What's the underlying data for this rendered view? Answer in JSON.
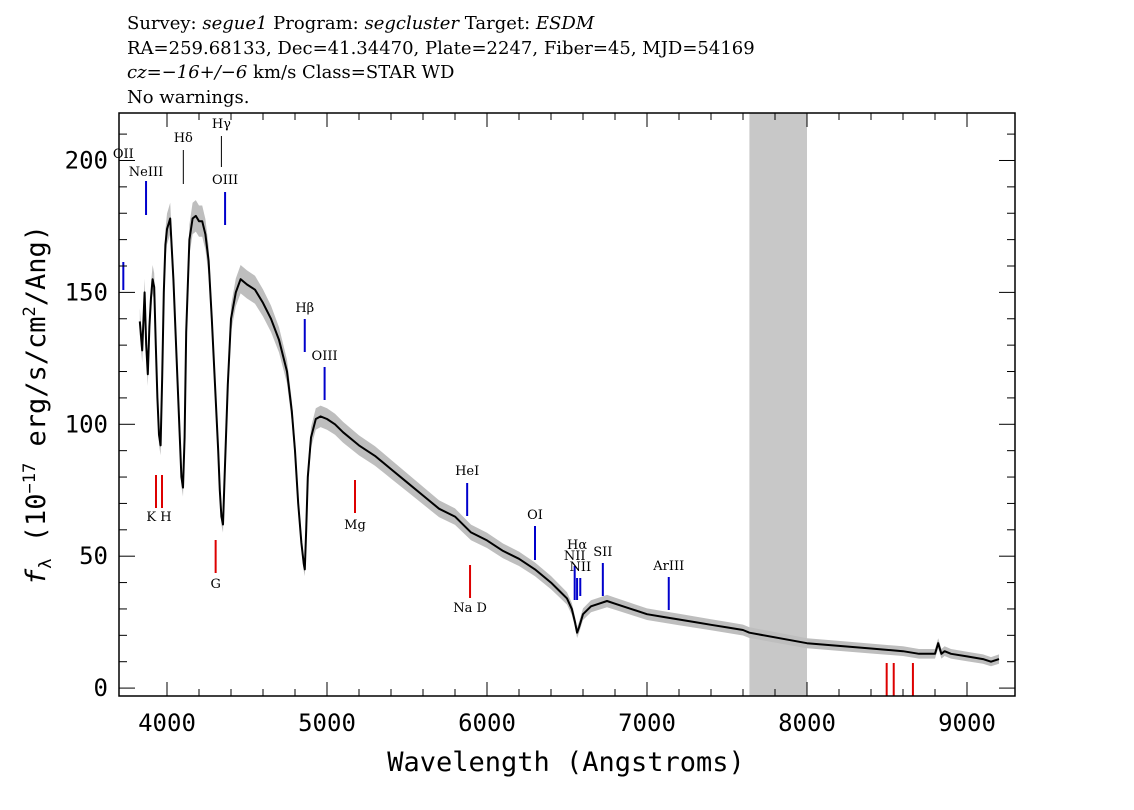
{
  "header": {
    "survey_label": "Survey:",
    "survey": "segue1",
    "program_label": "Program:",
    "program": "segcluster",
    "target_label": "Target:",
    "target": "ESDM",
    "line2": "RA=259.68133, Dec=41.34470, Plate=2247, Fiber=45, MJD=54169",
    "cz_label": "cz=",
    "cz_value": "−16+/−6",
    "cz_rest": " km/s Class=STAR WD",
    "line4": "No warnings."
  },
  "colors": {
    "spectrum": "#000000",
    "error_band": "#bebebe",
    "masked_region": "#c8c8c8",
    "emission_lines": "#0000cc",
    "absorption_lines": "#dd0000"
  },
  "chart_data": {
    "type": "line",
    "title": "",
    "xlabel": "Wavelength (Angstroms)",
    "ylabel": "fλ (10⁻¹⁷ erg/s/cm²/Ang)",
    "ylabel_parts": [
      "f",
      "λ",
      " (10",
      "−17",
      " erg/s/cm",
      "2",
      "/Ang)"
    ],
    "xlim": [
      3700,
      9300
    ],
    "ylim": [
      -3,
      218
    ],
    "xticks": [
      4000,
      5000,
      6000,
      7000,
      8000,
      9000
    ],
    "yticks": [
      0,
      50,
      100,
      150,
      200
    ],
    "masked_region": [
      7640,
      8000
    ],
    "series": [
      {
        "x": [
          3830,
          3845,
          3860,
          3870,
          3880,
          3890,
          3900,
          3910,
          3920,
          3930,
          3940,
          3950,
          3960,
          3970,
          3980,
          3990,
          4000,
          4020,
          4040,
          4060,
          4080,
          4090,
          4100,
          4110,
          4120,
          4140,
          4160,
          4180,
          4200,
          4220,
          4240,
          4260,
          4280,
          4300,
          4320,
          4330,
          4340,
          4350,
          4360,
          4380,
          4400,
          4430,
          4460,
          4500,
          4550,
          4600,
          4650,
          4700,
          4750,
          4780,
          4800,
          4820,
          4840,
          4855,
          4861,
          4870,
          4880,
          4900,
          4930,
          4960,
          5000,
          5050,
          5100,
          5200,
          5300,
          5400,
          5500,
          5600,
          5700,
          5800,
          5900,
          6000,
          6100,
          6200,
          6300,
          6400,
          6450,
          6500,
          6530,
          6550,
          6563,
          6575,
          6600,
          6650,
          6700,
          6750,
          6800,
          6900,
          7000,
          7100,
          7200,
          7300,
          7400,
          7500,
          7600,
          7640,
          8000,
          8200,
          8400,
          8600,
          8700,
          8800,
          8820,
          8840,
          8860,
          8900,
          9000,
          9100,
          9150,
          9200
        ],
        "y": [
          139,
          128,
          150,
          130,
          119,
          137,
          148,
          155,
          152,
          130,
          110,
          96,
          92,
          118,
          150,
          168,
          174,
          178,
          155,
          125,
          95,
          80,
          76,
          95,
          135,
          170,
          178,
          179,
          177,
          177,
          172,
          162,
          140,
          115,
          90,
          75,
          65,
          62,
          80,
          115,
          140,
          150,
          155,
          153,
          151,
          146,
          140,
          132,
          120,
          105,
          90,
          70,
          55,
          47,
          45,
          60,
          80,
          95,
          102,
          103,
          102,
          100,
          97,
          92,
          88,
          83,
          78,
          73,
          68,
          65,
          59,
          56,
          52,
          49,
          45,
          40,
          37,
          34,
          30,
          25,
          21,
          23,
          28,
          31,
          32,
          33,
          32,
          30,
          28,
          27,
          26,
          25,
          24,
          23,
          22,
          21,
          17,
          16,
          15,
          14,
          13,
          13,
          17,
          13,
          14,
          13,
          12,
          11,
          10,
          11
        ]
      }
    ],
    "line_labels": [
      {
        "label": "OII",
        "wave": 3727,
        "kind": "emission",
        "position": "upper"
      },
      {
        "label": "NeIII",
        "wave": 3869,
        "kind": "emission",
        "position": "upper"
      },
      {
        "label": "Hδ",
        "wave": 4102,
        "kind": "other",
        "position": "upper"
      },
      {
        "label": "Hγ",
        "wave": 4340,
        "kind": "other",
        "position": "upper"
      },
      {
        "label": "OIII",
        "wave": 4363,
        "kind": "emission",
        "position": "upper"
      },
      {
        "label": "Hβ",
        "wave": 4861,
        "kind": "emission",
        "position": "upper"
      },
      {
        "label": "OIII",
        "wave": 4985,
        "kind": "emission",
        "position": "upper"
      },
      {
        "label": "HeI",
        "wave": 5876,
        "kind": "emission",
        "position": "upper"
      },
      {
        "label": "OI",
        "wave": 6300,
        "kind": "emission",
        "position": "upper"
      },
      {
        "label": "NII",
        "wave": 6548,
        "kind": "emission",
        "position": "upper"
      },
      {
        "label": "Hα",
        "wave": 6563,
        "kind": "emission",
        "position": "upper"
      },
      {
        "label": "NII",
        "wave": 6583,
        "kind": "emission",
        "position": "upper"
      },
      {
        "label": "SII",
        "wave": 6724,
        "kind": "emission",
        "position": "upper"
      },
      {
        "label": "ArIII",
        "wave": 7136,
        "kind": "emission",
        "position": "upper"
      },
      {
        "label": "K H",
        "wave": 3950,
        "kind": "absorption",
        "position": "lower"
      },
      {
        "label": "G",
        "wave": 4304,
        "kind": "absorption",
        "position": "lower"
      },
      {
        "label": "Mg",
        "wave": 5175,
        "kind": "absorption",
        "position": "lower"
      },
      {
        "label": "Na  D",
        "wave": 5894,
        "kind": "absorption",
        "position": "lower"
      }
    ]
  }
}
